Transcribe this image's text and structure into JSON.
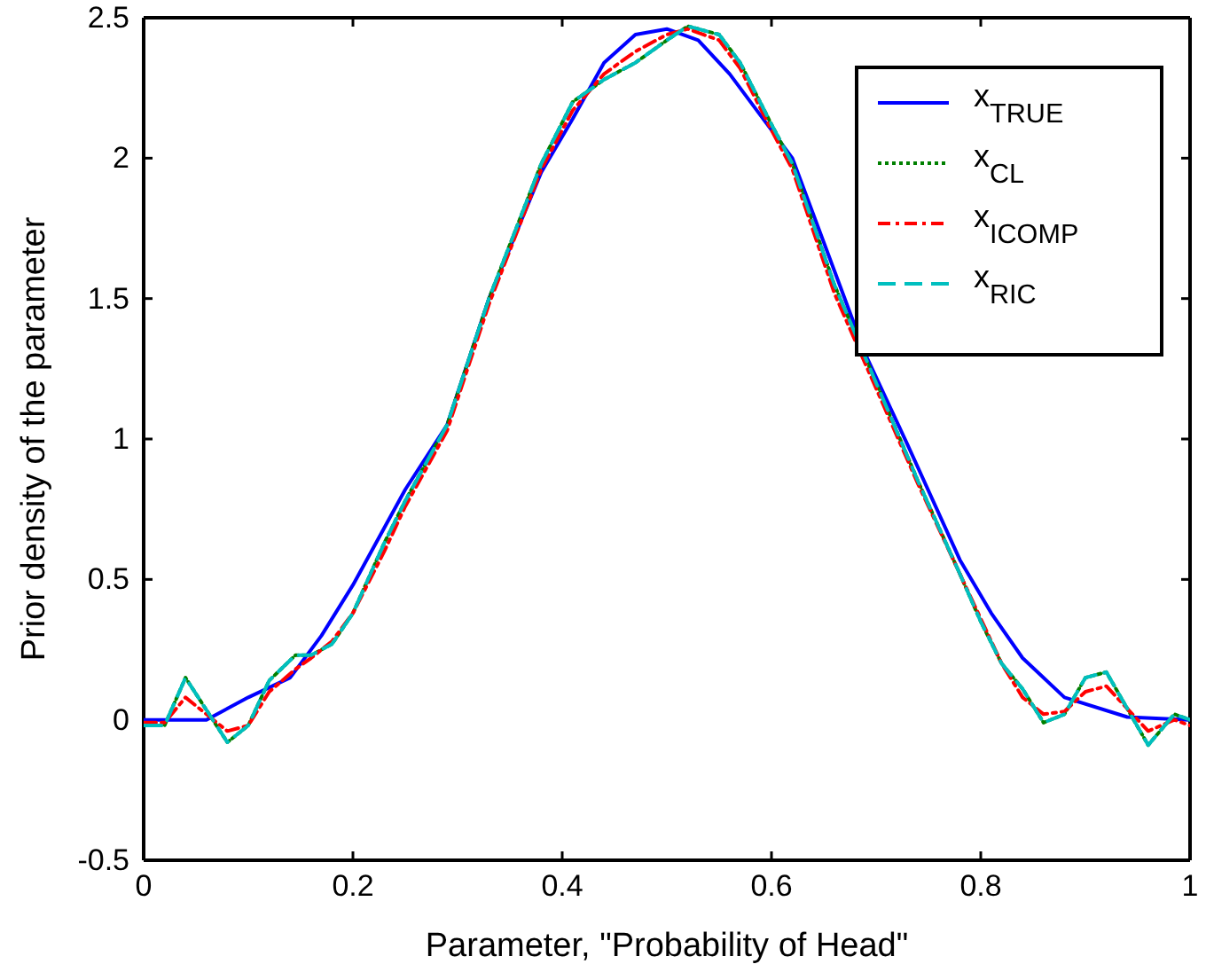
{
  "chart_data": {
    "type": "line",
    "xlabel": "Parameter, \"Probability of Head\"",
    "ylabel": "Prior density of the parameter",
    "xlim": [
      0,
      1
    ],
    "xticks": [
      0,
      0.2,
      0.4,
      0.6,
      0.8,
      1
    ],
    "ylim": [
      -0.5,
      2.5
    ],
    "yticks": [
      -0.5,
      0,
      0.5,
      1,
      1.5,
      2,
      2.5
    ],
    "grid": false,
    "legend": "top right",
    "marker": "none",
    "series": [
      {
        "name": "x$_{TRUE}$",
        "color": "#0000ff",
        "line_style": "solid",
        "x": [
          0,
          0.06,
          0.1,
          0.14,
          0.17,
          0.2,
          0.25,
          0.29,
          0.33,
          0.38,
          0.41,
          0.44,
          0.47,
          0.5,
          0.53,
          0.56,
          0.6,
          0.62,
          0.66,
          0.69,
          0.73,
          0.78,
          0.81,
          0.84,
          0.88,
          0.94,
          1
        ],
        "values": [
          0,
          0,
          0.08,
          0.15,
          0.3,
          0.48,
          0.82,
          1.05,
          1.5,
          1.95,
          2.14,
          2.34,
          2.44,
          2.46,
          2.42,
          2.3,
          2.1,
          2,
          1.6,
          1.3,
          0.98,
          0.57,
          0.38,
          0.22,
          0.08,
          0.01,
          0
        ]
      },
      {
        "name": "x$_{CL}$",
        "color": "#008000",
        "line_style": "dotted",
        "x": [
          0,
          0.02,
          0.04,
          0.08,
          0.1,
          0.12,
          0.145,
          0.16,
          0.18,
          0.2,
          0.23,
          0.25,
          0.29,
          0.33,
          0.38,
          0.41,
          0.44,
          0.47,
          0.5,
          0.52,
          0.55,
          0.57,
          0.6,
          0.62,
          0.66,
          0.7,
          0.74,
          0.78,
          0.8,
          0.82,
          0.84,
          0.86,
          0.88,
          0.9,
          0.92,
          0.96,
          0.985,
          1
        ],
        "values": [
          -0.02,
          -0.02,
          0.15,
          -0.08,
          -0.02,
          0.14,
          0.23,
          0.23,
          0.27,
          0.38,
          0.63,
          0.78,
          1.05,
          1.5,
          1.98,
          2.2,
          2.28,
          2.34,
          2.42,
          2.47,
          2.44,
          2.34,
          2.12,
          1.98,
          1.55,
          1.2,
          0.85,
          0.52,
          0.35,
          0.2,
          0.11,
          -0.01,
          0.02,
          0.15,
          0.17,
          -0.09,
          0.02,
          0
        ]
      },
      {
        "name": "x$_{ICOMP}$",
        "color": "#ff0000",
        "line_style": "dashdot",
        "x": [
          0,
          0.02,
          0.04,
          0.08,
          0.1,
          0.12,
          0.145,
          0.16,
          0.18,
          0.2,
          0.23,
          0.25,
          0.29,
          0.33,
          0.38,
          0.41,
          0.44,
          0.47,
          0.5,
          0.52,
          0.55,
          0.57,
          0.6,
          0.62,
          0.66,
          0.7,
          0.74,
          0.78,
          0.8,
          0.82,
          0.84,
          0.86,
          0.88,
          0.9,
          0.92,
          0.96,
          0.985,
          1
        ],
        "values": [
          -0.01,
          -0.01,
          0.08,
          -0.04,
          -0.02,
          0.1,
          0.18,
          0.22,
          0.28,
          0.38,
          0.6,
          0.76,
          1.03,
          1.48,
          1.96,
          2.17,
          2.3,
          2.38,
          2.44,
          2.46,
          2.42,
          2.32,
          2.1,
          1.96,
          1.52,
          1.18,
          0.84,
          0.52,
          0.36,
          0.2,
          0.08,
          0.02,
          0.03,
          0.1,
          0.12,
          -0.04,
          0,
          -0.02
        ]
      },
      {
        "name": "x$_{RIC}$",
        "color": "#00bfbf",
        "line_style": "dashed",
        "x": [
          0,
          0.02,
          0.04,
          0.08,
          0.1,
          0.12,
          0.145,
          0.16,
          0.18,
          0.2,
          0.23,
          0.25,
          0.29,
          0.33,
          0.38,
          0.41,
          0.44,
          0.47,
          0.5,
          0.52,
          0.55,
          0.57,
          0.6,
          0.62,
          0.66,
          0.7,
          0.74,
          0.78,
          0.8,
          0.82,
          0.84,
          0.86,
          0.88,
          0.9,
          0.92,
          0.96,
          0.985,
          1
        ],
        "values": [
          -0.02,
          -0.02,
          0.15,
          -0.08,
          -0.02,
          0.14,
          0.23,
          0.23,
          0.27,
          0.38,
          0.63,
          0.78,
          1.05,
          1.5,
          1.98,
          2.2,
          2.28,
          2.34,
          2.42,
          2.47,
          2.44,
          2.34,
          2.12,
          1.98,
          1.55,
          1.2,
          0.85,
          0.52,
          0.35,
          0.2,
          0.11,
          -0.01,
          0.02,
          0.15,
          0.17,
          -0.09,
          0.02,
          0
        ]
      }
    ]
  }
}
